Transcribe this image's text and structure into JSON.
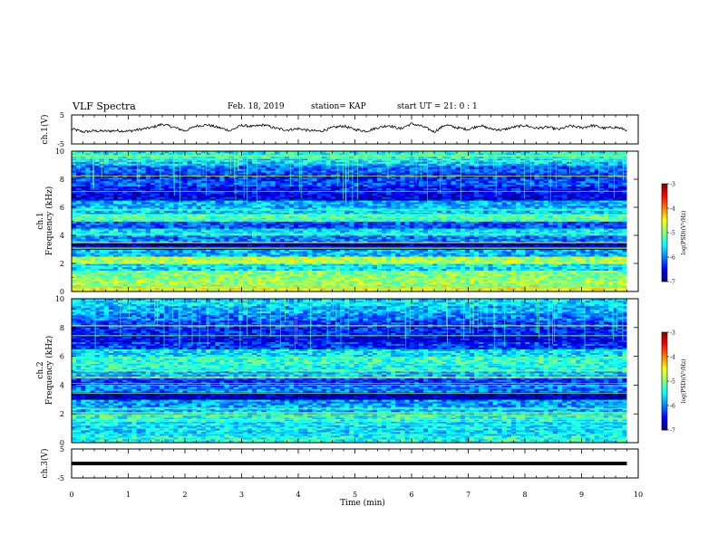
{
  "header": {
    "title": "VLF Spectra",
    "date": "Feb. 18, 2019",
    "station": "station= KAP",
    "start": "start  UT =   21: 0  : 1"
  },
  "chart_data": [
    {
      "type": "line",
      "panel": "ch1-waveform",
      "ylabel": "ch.1(V)",
      "ylim": [
        -5,
        5
      ],
      "yticks": [
        "5",
        "-5"
      ],
      "xlim": [
        0,
        10
      ],
      "x": [
        0,
        0.2,
        0.4,
        0.6,
        0.8,
        1.0,
        1.2,
        1.4,
        1.6,
        1.8,
        2.0,
        2.2,
        2.4,
        2.6,
        2.8,
        3.0,
        3.2,
        3.4,
        3.6,
        3.8,
        4.0,
        4.2,
        4.4,
        4.6,
        4.8,
        5.0,
        5.2,
        5.4,
        5.6,
        5.8,
        6.0,
        6.2,
        6.4,
        6.6,
        6.8,
        7.0,
        7.2,
        7.4,
        7.6,
        7.8,
        8.0,
        8.2,
        8.4,
        8.6,
        8.8,
        9.0,
        9.2,
        9.4,
        9.6,
        9.8
      ],
      "values": [
        0.2,
        -0.8,
        -0.5,
        -0.6,
        -0.4,
        -0.6,
        0.0,
        0.6,
        1.8,
        0.8,
        -0.5,
        1.2,
        1.6,
        0.6,
        -0.4,
        1.4,
        1.0,
        1.6,
        0.4,
        -0.2,
        0.3,
        -0.4,
        -0.6,
        0.6,
        1.2,
        0.0,
        -0.6,
        0.6,
        1.4,
        0.2,
        2.0,
        1.0,
        -0.8,
        1.6,
        0.6,
        0.0,
        1.4,
        0.2,
        -0.2,
        0.8,
        1.4,
        0.4,
        0.8,
        0.0,
        1.2,
        0.6,
        1.4,
        0.4,
        0.8,
        -0.2
      ]
    },
    {
      "type": "heatmap",
      "panel": "ch1-spectrogram",
      "ylabel": "ch.1\nFrequency (kHz)",
      "ylim": [
        0,
        10
      ],
      "yticks": [
        "0",
        "2",
        "4",
        "6",
        "8",
        "10"
      ],
      "xlim": [
        0,
        10
      ],
      "band_edges_khz": [
        0,
        0.5,
        1.0,
        1.5,
        2.0,
        2.5,
        3.0,
        3.5,
        4.0,
        4.5,
        5.0,
        5.5,
        6.0,
        6.5,
        7.0,
        7.5,
        8.0,
        8.5,
        9.0,
        9.5,
        10.0
      ],
      "band_log_psd": [
        -4.6,
        -4.9,
        -5.0,
        -5.6,
        -4.8,
        -5.8,
        -6.8,
        -6.0,
        -5.6,
        -6.2,
        -5.2,
        -5.7,
        -5.8,
        -6.6,
        -6.5,
        -6.2,
        -6.3,
        -6.1,
        -5.7,
        -5.4
      ],
      "colorbar": {
        "label": "log(PSD)(V²/Hz)",
        "range": [
          -7,
          -3
        ],
        "ticks": [
          "-3",
          "-4",
          "-5",
          "-6",
          "-7"
        ]
      }
    },
    {
      "type": "heatmap",
      "panel": "ch2-spectrogram",
      "ylabel": "ch.2\nFrequency (kHz)",
      "ylim": [
        0,
        10
      ],
      "yticks": [
        "0",
        "2",
        "4",
        "6",
        "8",
        "10"
      ],
      "xlim": [
        0,
        10
      ],
      "band_edges_khz": [
        0,
        0.5,
        1.0,
        1.5,
        2.0,
        2.5,
        3.0,
        3.5,
        4.0,
        4.5,
        5.0,
        5.5,
        6.0,
        6.5,
        7.0,
        7.5,
        8.0,
        8.5,
        9.0,
        9.5,
        10.0
      ],
      "band_log_psd": [
        -5.4,
        -5.6,
        -5.6,
        -5.4,
        -5.8,
        -5.9,
        -6.8,
        -6.0,
        -6.3,
        -5.8,
        -5.4,
        -5.3,
        -5.6,
        -6.3,
        -6.6,
        -6.4,
        -6.3,
        -6.0,
        -5.8,
        -5.6
      ],
      "colorbar": {
        "label": "log(PSD)(V²/Hz)",
        "range": [
          -7,
          -3
        ],
        "ticks": [
          "-3",
          "-4",
          "-5",
          "-6",
          "-7"
        ]
      }
    },
    {
      "type": "line",
      "panel": "ch3-waveform",
      "ylabel": "ch.3(V)",
      "ylim": [
        -5,
        5
      ],
      "yticks": [
        "5",
        "-5"
      ],
      "xlim": [
        0,
        10
      ],
      "x": [
        0,
        9.8
      ],
      "values": [
        0,
        0
      ],
      "xlabel": "Time (min)",
      "xticks": [
        "0",
        "1",
        "2",
        "3",
        "4",
        "5",
        "6",
        "7",
        "8",
        "9",
        "10"
      ]
    }
  ],
  "colors": {
    "line": "#000000",
    "colormap": [
      "#00007f",
      "#0000ff",
      "#007fff",
      "#00ffff",
      "#7fff7f",
      "#ffff00",
      "#ff7f00",
      "#ff0000",
      "#7f0000"
    ]
  }
}
